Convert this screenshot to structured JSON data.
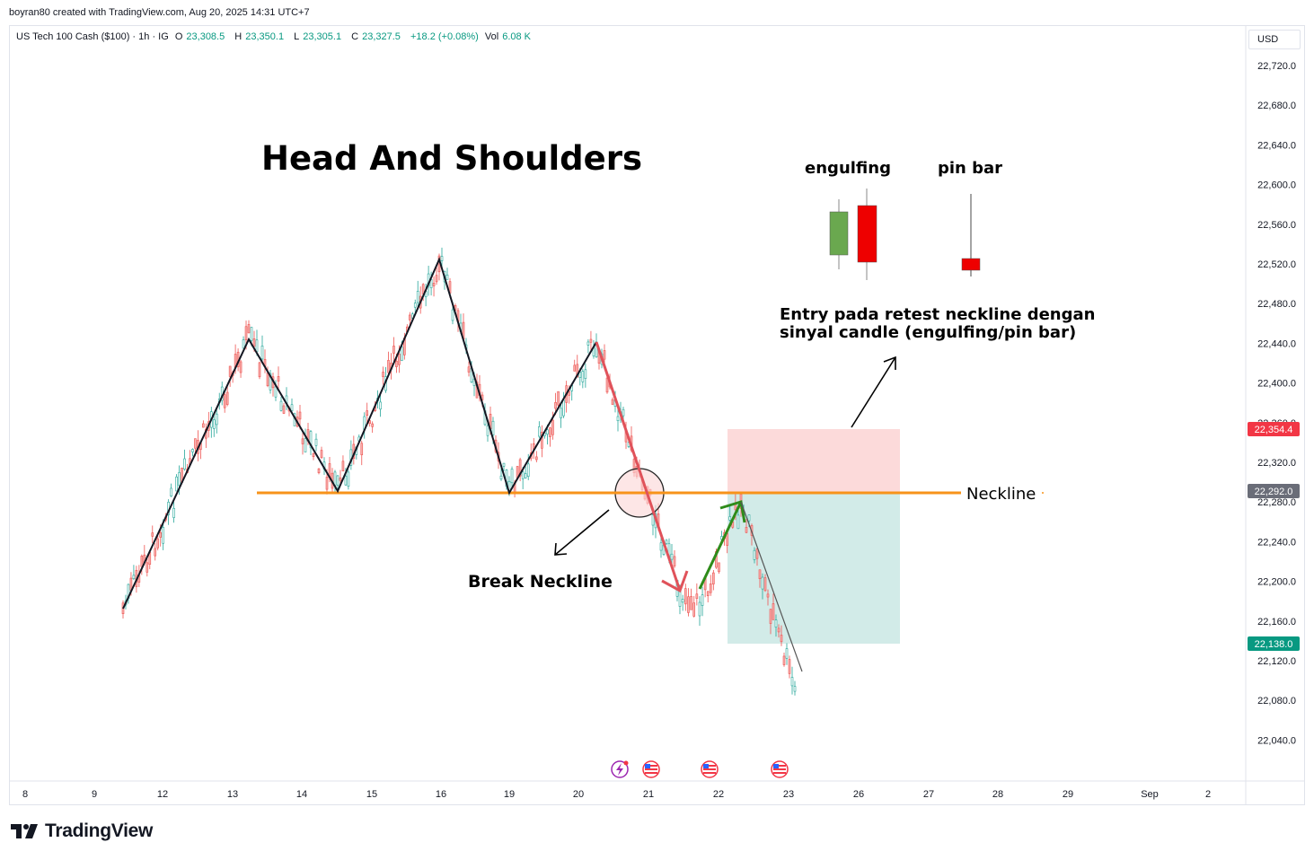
{
  "header": {
    "credit": "boyran80 created with TradingView.com, Aug 20, 2025 14:31 UTC+7"
  },
  "legend": {
    "symbol": "US Tech 100 Cash ($100) · 1h · IG",
    "o_label": "O",
    "o": "23,308.5",
    "h_label": "H",
    "h": "23,350.1",
    "l_label": "L",
    "l": "23,305.1",
    "c_label": "C",
    "c": "23,327.5",
    "change": "+18.2 (+0.08%)",
    "vol_label": "Vol",
    "vol": "6.08 K"
  },
  "currency": "USD",
  "brand": "TradingView",
  "colors": {
    "up": "#26a69a",
    "down": "#ef5350",
    "neckline": "#f7931a",
    "sl": "#f23645",
    "tp": "#089981",
    "zone_risk": "#fcd6d6",
    "zone_reward": "#cde9e6"
  },
  "chart_data": {
    "type": "candlestick",
    "price_axis": {
      "ticks": [
        "22,720.0",
        "22,680.0",
        "22,640.0",
        "22,600.0",
        "22,560.0",
        "22,520.0",
        "22,480.0",
        "22,440.0",
        "22,400.0",
        "22,360.0",
        "22,320.0",
        "22,280.0",
        "22,240.0",
        "22,200.0",
        "22,160.0",
        "22,120.0",
        "22,080.0",
        "22,040.0"
      ]
    },
    "time_axis": {
      "ticks": [
        "8",
        "9",
        "12",
        "13",
        "14",
        "15",
        "16",
        "19",
        "20",
        "21",
        "22",
        "23",
        "26",
        "27",
        "28",
        "29",
        "Sep",
        "2"
      ]
    },
    "price_labels": {
      "stop_loss": "22,354.4",
      "neckline": "22,292.0",
      "take_profit": "22,138.0"
    },
    "swing_points": [
      {
        "date": "Aug 11",
        "price": 22170
      },
      {
        "date": "Aug 13",
        "price": 22445
      },
      {
        "date": "Aug 14",
        "price": 22293
      },
      {
        "date": "Aug 15",
        "price": 22525
      },
      {
        "date": "Aug 18",
        "price": 22293
      },
      {
        "date": "Aug 20",
        "price": 22446
      },
      {
        "date": "Aug 21",
        "price": 22185
      },
      {
        "date": "Aug 22",
        "price": 22282
      },
      {
        "date": "Aug 23",
        "price": 22110
      }
    ],
    "neckline_price": 22292,
    "annotations": {
      "title": "Head And Shoulders",
      "engulfing": "engulfing",
      "pinbar": "pin bar",
      "entry_line1": "Entry pada retest neckline dengan",
      "entry_line2": "sinyal candle (engulfing/pin bar)",
      "neckline": "Neckline",
      "break": "Break Neckline"
    }
  }
}
